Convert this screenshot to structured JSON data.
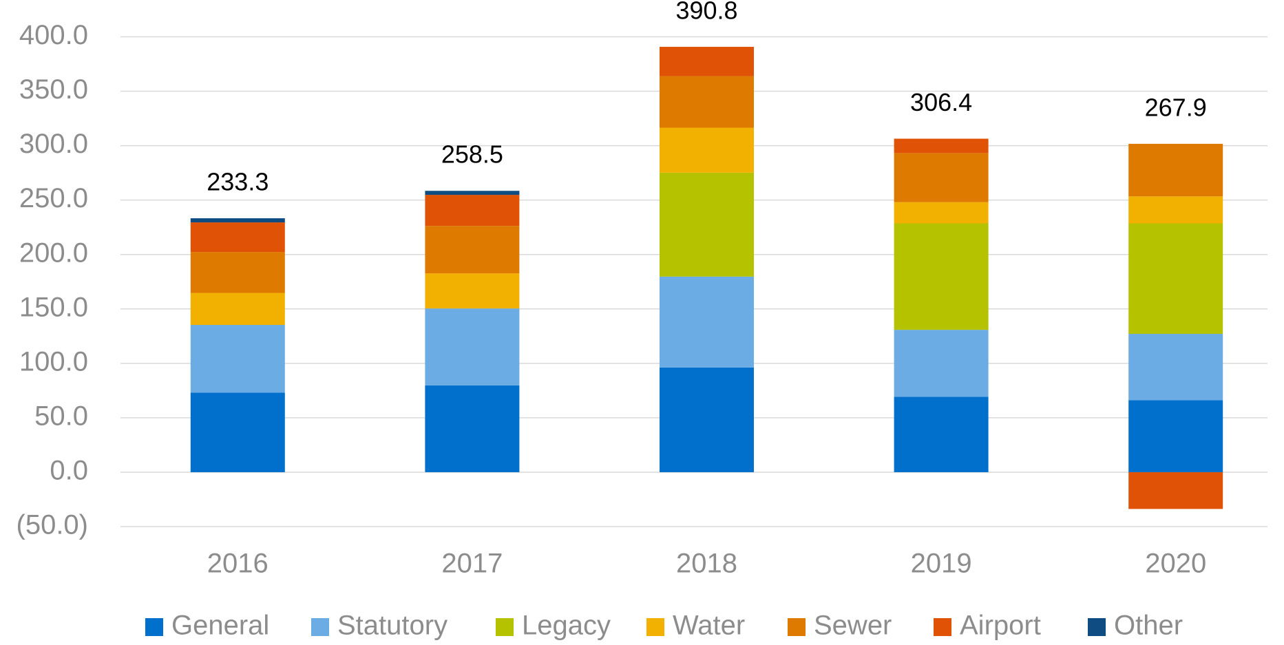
{
  "chart_data": {
    "type": "stacked_bar",
    "categories": [
      "2016",
      "2017",
      "2018",
      "2019",
      "2020"
    ],
    "series": [
      {
        "name": "General",
        "color": "#0070cc",
        "values": [
          73.0,
          79.7,
          96.2,
          69.2,
          66.2
        ]
      },
      {
        "name": "Statutory",
        "color": "#6aace3",
        "values": [
          62.3,
          70.7,
          83.5,
          61.6,
          60.9
        ]
      },
      {
        "name": "Legacy",
        "color": "#b5c200",
        "values": [
          0,
          0,
          95.5,
          97.8,
          101.5
        ]
      },
      {
        "name": "Water",
        "color": "#f2b000",
        "values": [
          29.4,
          32.3,
          41.3,
          19.5,
          24.8
        ]
      },
      {
        "name": "Sewer",
        "color": "#de7a00",
        "values": [
          37.6,
          43.6,
          47.4,
          45.1,
          48.3
        ]
      },
      {
        "name": "Airport",
        "color": "#e05206",
        "values": [
          27.2,
          28.5,
          26.9,
          13.2,
          -33.8
        ]
      },
      {
        "name": "Other",
        "color": "#0f4c81",
        "values": [
          3.8,
          3.7,
          0,
          0,
          0
        ]
      }
    ],
    "totals": [
      233.3,
      258.5,
      390.8,
      306.4,
      267.9
    ],
    "ylim": [
      -50,
      400
    ],
    "yticks": [
      {
        "value": -50,
        "label": "(50.0)"
      },
      {
        "value": 0,
        "label": "0.0"
      },
      {
        "value": 50,
        "label": "50.0"
      },
      {
        "value": 100,
        "label": "100.0"
      },
      {
        "value": 150,
        "label": "150.0"
      },
      {
        "value": 200,
        "label": "200.0"
      },
      {
        "value": 250,
        "label": "250.0"
      },
      {
        "value": 300,
        "label": "300.0"
      },
      {
        "value": 350,
        "label": "350.0"
      },
      {
        "value": 400,
        "label": "400.0"
      }
    ],
    "grid": true,
    "legend": "bottom"
  }
}
